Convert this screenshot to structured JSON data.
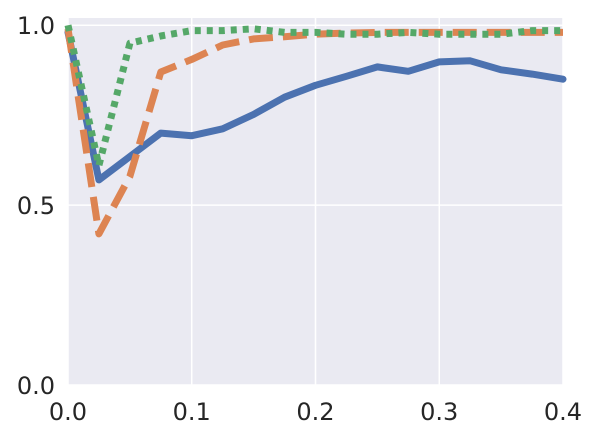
{
  "chart_data": {
    "type": "line",
    "title": "",
    "xlabel": "",
    "ylabel": "",
    "xlim": [
      0.0,
      0.4
    ],
    "ylim": [
      0.0,
      1.02
    ],
    "grid": true,
    "legend": "none",
    "x_ticks": [
      0.0,
      0.1,
      0.2,
      0.3,
      0.4
    ],
    "x_tick_labels": [
      "0.0",
      "0.1",
      "0.2",
      "0.3",
      "0.4"
    ],
    "y_ticks": [
      0.0,
      0.5,
      1.0
    ],
    "y_tick_labels": [
      "0.0",
      "0.5",
      "1.0"
    ],
    "background_color": "#eaeaf2",
    "grid_color": "#ffffff",
    "x": [
      0.0,
      0.025,
      0.05,
      0.075,
      0.1,
      0.125,
      0.15,
      0.175,
      0.2,
      0.225,
      0.25,
      0.275,
      0.3,
      0.325,
      0.35,
      0.375,
      0.4
    ],
    "series": [
      {
        "color": "#4c72b0",
        "style": "solid",
        "values": [
          0.98,
          0.57,
          0.635,
          0.7,
          0.693,
          0.712,
          0.752,
          0.8,
          0.833,
          0.858,
          0.884,
          0.872,
          0.898,
          0.901,
          0.876,
          0.864,
          0.85
        ]
      },
      {
        "color": "#dd8452",
        "style": "dashed",
        "values": [
          0.99,
          0.42,
          0.58,
          0.87,
          0.905,
          0.945,
          0.962,
          0.968,
          0.975,
          0.978,
          0.98,
          0.98,
          0.98,
          0.98,
          0.98,
          0.98,
          0.98
        ]
      },
      {
        "color": "#55a868",
        "style": "dotted",
        "values": [
          1.0,
          0.61,
          0.95,
          0.97,
          0.985,
          0.985,
          0.99,
          0.98,
          0.98,
          0.975,
          0.975,
          0.98,
          0.975,
          0.975,
          0.975,
          0.985,
          0.985
        ]
      }
    ]
  }
}
